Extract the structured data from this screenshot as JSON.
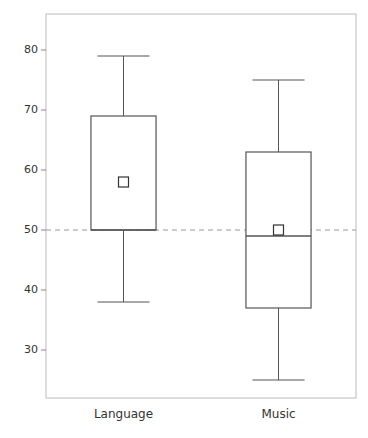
{
  "chart_data": {
    "type": "box",
    "categories": [
      "Language",
      "Music"
    ],
    "whisker_low": [
      38,
      25
    ],
    "q1": [
      50,
      37
    ],
    "median": [
      50,
      49
    ],
    "q3": [
      69,
      63
    ],
    "whisker_high": [
      79,
      75
    ],
    "mean": [
      58,
      50
    ],
    "chance_line": 50,
    "color": "#555555",
    "ylim": [
      22,
      86
    ],
    "yticks": [
      30,
      40,
      50,
      60,
      70,
      80
    ],
    "grid": false
  }
}
